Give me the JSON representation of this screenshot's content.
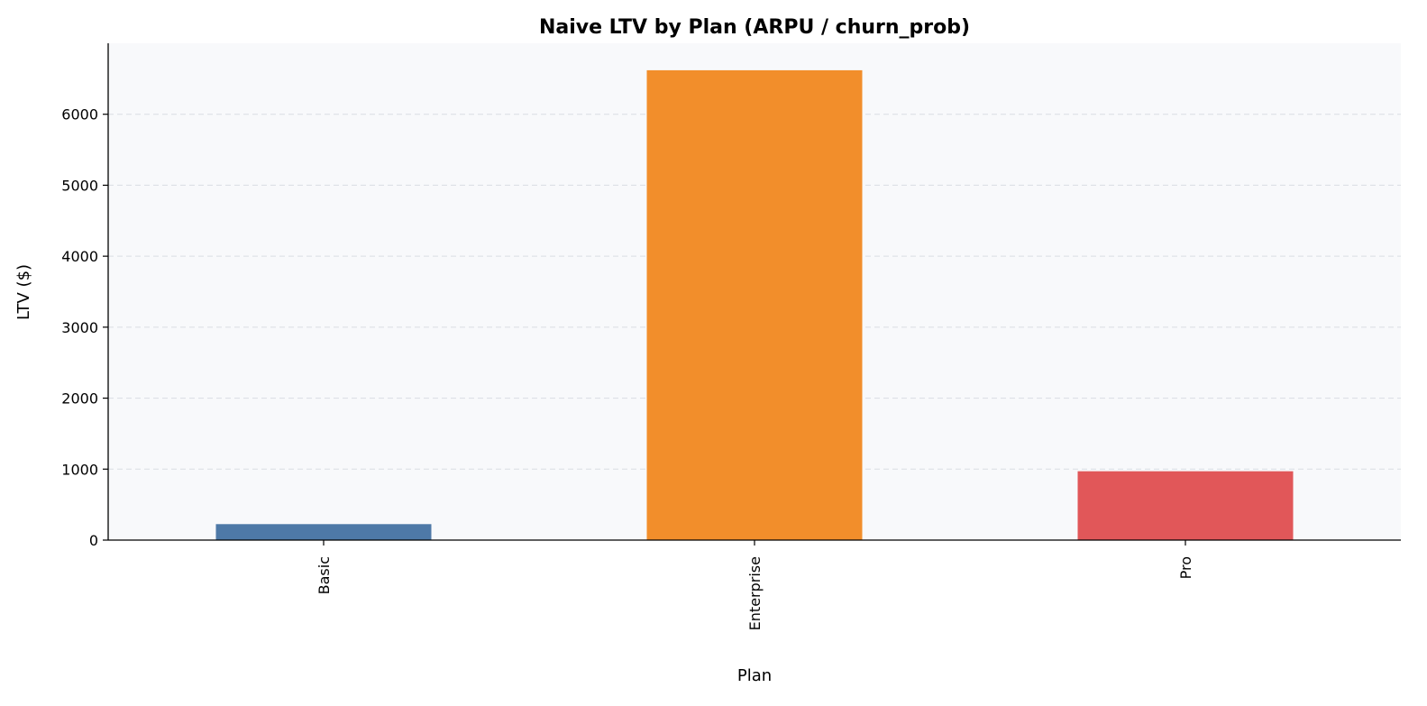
{
  "chart_data": {
    "type": "bar",
    "title": "Naive LTV by Plan (ARPU / churn_prob)",
    "xlabel": "Plan",
    "ylabel": "LTV ($)",
    "categories": [
      "Basic",
      "Enterprise",
      "Pro"
    ],
    "values": [
      225,
      6620,
      970
    ],
    "colors": [
      "#4e79a7",
      "#f28e2b",
      "#e15759"
    ],
    "ylim": [
      0,
      7000
    ],
    "yticks": [
      0,
      1000,
      2000,
      3000,
      4000,
      5000,
      6000
    ],
    "ytick_labels": [
      "0",
      "1000",
      "2000",
      "3000",
      "4000",
      "5000",
      "6000"
    ],
    "grid": "y-dashed",
    "plot_background": "#f8f9fb",
    "legend": "none"
  }
}
